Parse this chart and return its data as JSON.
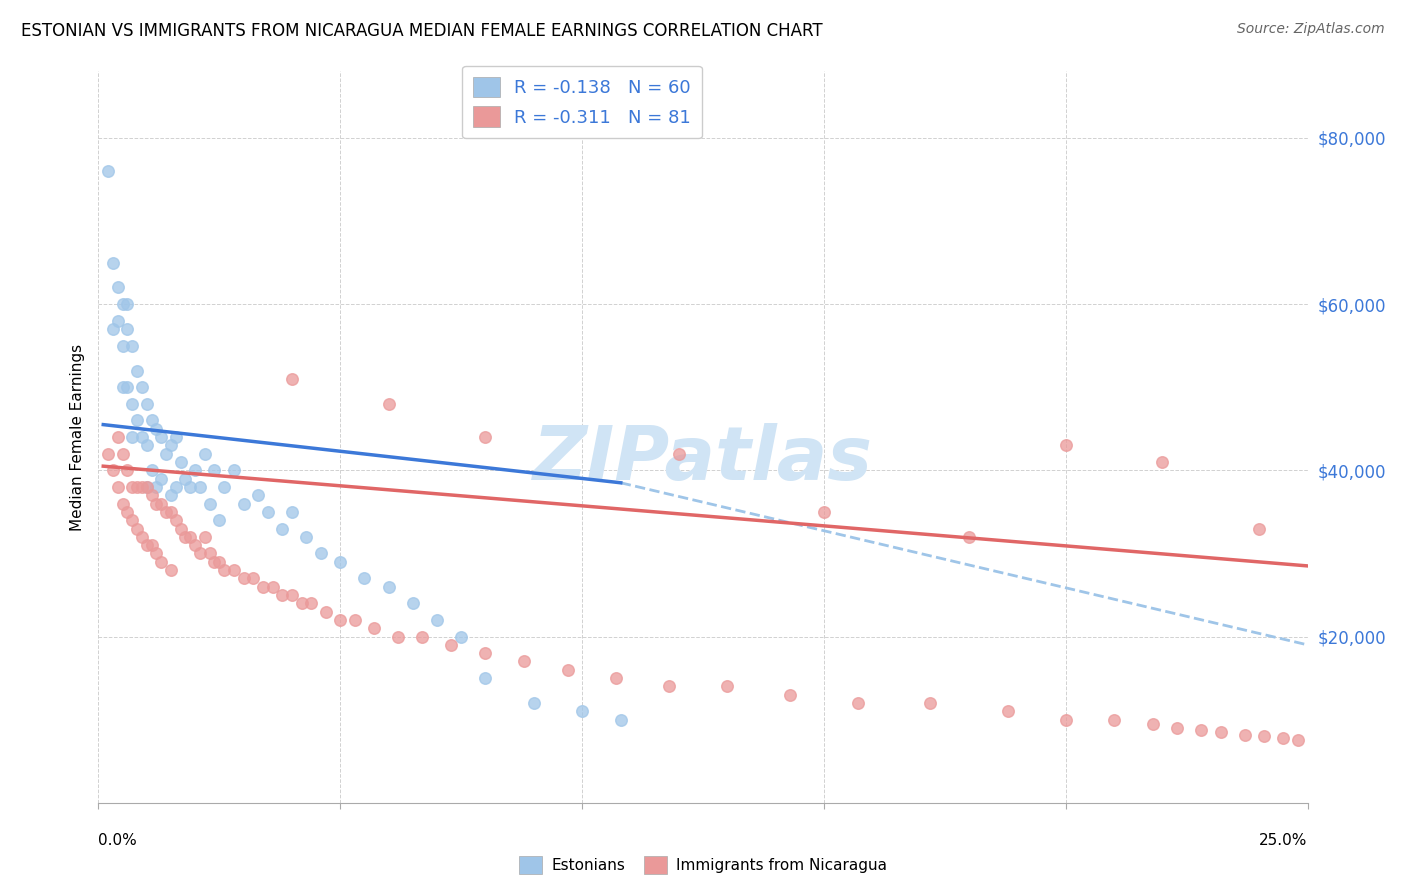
{
  "title": "ESTONIAN VS IMMIGRANTS FROM NICARAGUA MEDIAN FEMALE EARNINGS CORRELATION CHART",
  "source": "Source: ZipAtlas.com",
  "ylabel": "Median Female Earnings",
  "y_ticks": [
    20000,
    40000,
    60000,
    80000
  ],
  "y_tick_labels": [
    "$20,000",
    "$40,000",
    "$60,000",
    "$80,000"
  ],
  "x_range": [
    0.0,
    0.25
  ],
  "y_range": [
    0,
    88000
  ],
  "legend1_R": "-0.138",
  "legend1_N": "60",
  "legend2_R": "-0.311",
  "legend2_N": "81",
  "color_estonian": "#9fc5e8",
  "color_nicaragua": "#ea9999",
  "color_line_estonian": "#3c78d8",
  "color_line_nicaragua": "#e06666",
  "color_line_dashed": "#9fc5e8",
  "watermark_color": "#d0e4f5",
  "est_line_x0": 0.001,
  "est_line_x1": 0.108,
  "est_line_y0": 45500,
  "est_line_y1": 38500,
  "nic_line_x0": 0.001,
  "nic_line_x1": 0.25,
  "nic_line_y0": 40500,
  "nic_line_y1": 28500,
  "dash_line_x0": 0.108,
  "dash_line_x1": 0.25,
  "dash_line_y0": 38500,
  "dash_line_y1": 19000,
  "estonians_x": [
    0.002,
    0.003,
    0.003,
    0.004,
    0.004,
    0.005,
    0.005,
    0.005,
    0.006,
    0.006,
    0.006,
    0.007,
    0.007,
    0.007,
    0.008,
    0.008,
    0.009,
    0.009,
    0.01,
    0.01,
    0.01,
    0.011,
    0.011,
    0.012,
    0.012,
    0.013,
    0.013,
    0.014,
    0.015,
    0.015,
    0.016,
    0.016,
    0.017,
    0.018,
    0.019,
    0.02,
    0.021,
    0.022,
    0.023,
    0.024,
    0.025,
    0.026,
    0.028,
    0.03,
    0.033,
    0.035,
    0.038,
    0.04,
    0.043,
    0.046,
    0.05,
    0.055,
    0.06,
    0.065,
    0.07,
    0.075,
    0.08,
    0.09,
    0.1,
    0.108
  ],
  "estonians_y": [
    76000,
    65000,
    57000,
    62000,
    58000,
    60000,
    55000,
    50000,
    60000,
    57000,
    50000,
    55000,
    48000,
    44000,
    52000,
    46000,
    50000,
    44000,
    48000,
    43000,
    38000,
    46000,
    40000,
    45000,
    38000,
    44000,
    39000,
    42000,
    43000,
    37000,
    44000,
    38000,
    41000,
    39000,
    38000,
    40000,
    38000,
    42000,
    36000,
    40000,
    34000,
    38000,
    40000,
    36000,
    37000,
    35000,
    33000,
    35000,
    32000,
    30000,
    29000,
    27000,
    26000,
    24000,
    22000,
    20000,
    15000,
    12000,
    11000,
    10000
  ],
  "nicaragua_x": [
    0.002,
    0.003,
    0.004,
    0.004,
    0.005,
    0.005,
    0.006,
    0.006,
    0.007,
    0.007,
    0.008,
    0.008,
    0.009,
    0.009,
    0.01,
    0.01,
    0.011,
    0.011,
    0.012,
    0.012,
    0.013,
    0.013,
    0.014,
    0.015,
    0.015,
    0.016,
    0.017,
    0.018,
    0.019,
    0.02,
    0.021,
    0.022,
    0.023,
    0.024,
    0.025,
    0.026,
    0.028,
    0.03,
    0.032,
    0.034,
    0.036,
    0.038,
    0.04,
    0.042,
    0.044,
    0.047,
    0.05,
    0.053,
    0.057,
    0.062,
    0.067,
    0.073,
    0.08,
    0.088,
    0.097,
    0.107,
    0.118,
    0.13,
    0.143,
    0.157,
    0.172,
    0.188,
    0.2,
    0.21,
    0.218,
    0.223,
    0.228,
    0.232,
    0.237,
    0.241,
    0.245,
    0.248,
    0.04,
    0.06,
    0.08,
    0.12,
    0.15,
    0.18,
    0.2,
    0.22,
    0.24
  ],
  "nicaragua_y": [
    42000,
    40000,
    44000,
    38000,
    42000,
    36000,
    40000,
    35000,
    38000,
    34000,
    38000,
    33000,
    38000,
    32000,
    38000,
    31000,
    37000,
    31000,
    36000,
    30000,
    36000,
    29000,
    35000,
    35000,
    28000,
    34000,
    33000,
    32000,
    32000,
    31000,
    30000,
    32000,
    30000,
    29000,
    29000,
    28000,
    28000,
    27000,
    27000,
    26000,
    26000,
    25000,
    25000,
    24000,
    24000,
    23000,
    22000,
    22000,
    21000,
    20000,
    20000,
    19000,
    18000,
    17000,
    16000,
    15000,
    14000,
    14000,
    13000,
    12000,
    12000,
    11000,
    10000,
    10000,
    9500,
    9000,
    8800,
    8500,
    8200,
    8000,
    7800,
    7500,
    51000,
    48000,
    44000,
    42000,
    35000,
    32000,
    43000,
    41000,
    33000
  ]
}
